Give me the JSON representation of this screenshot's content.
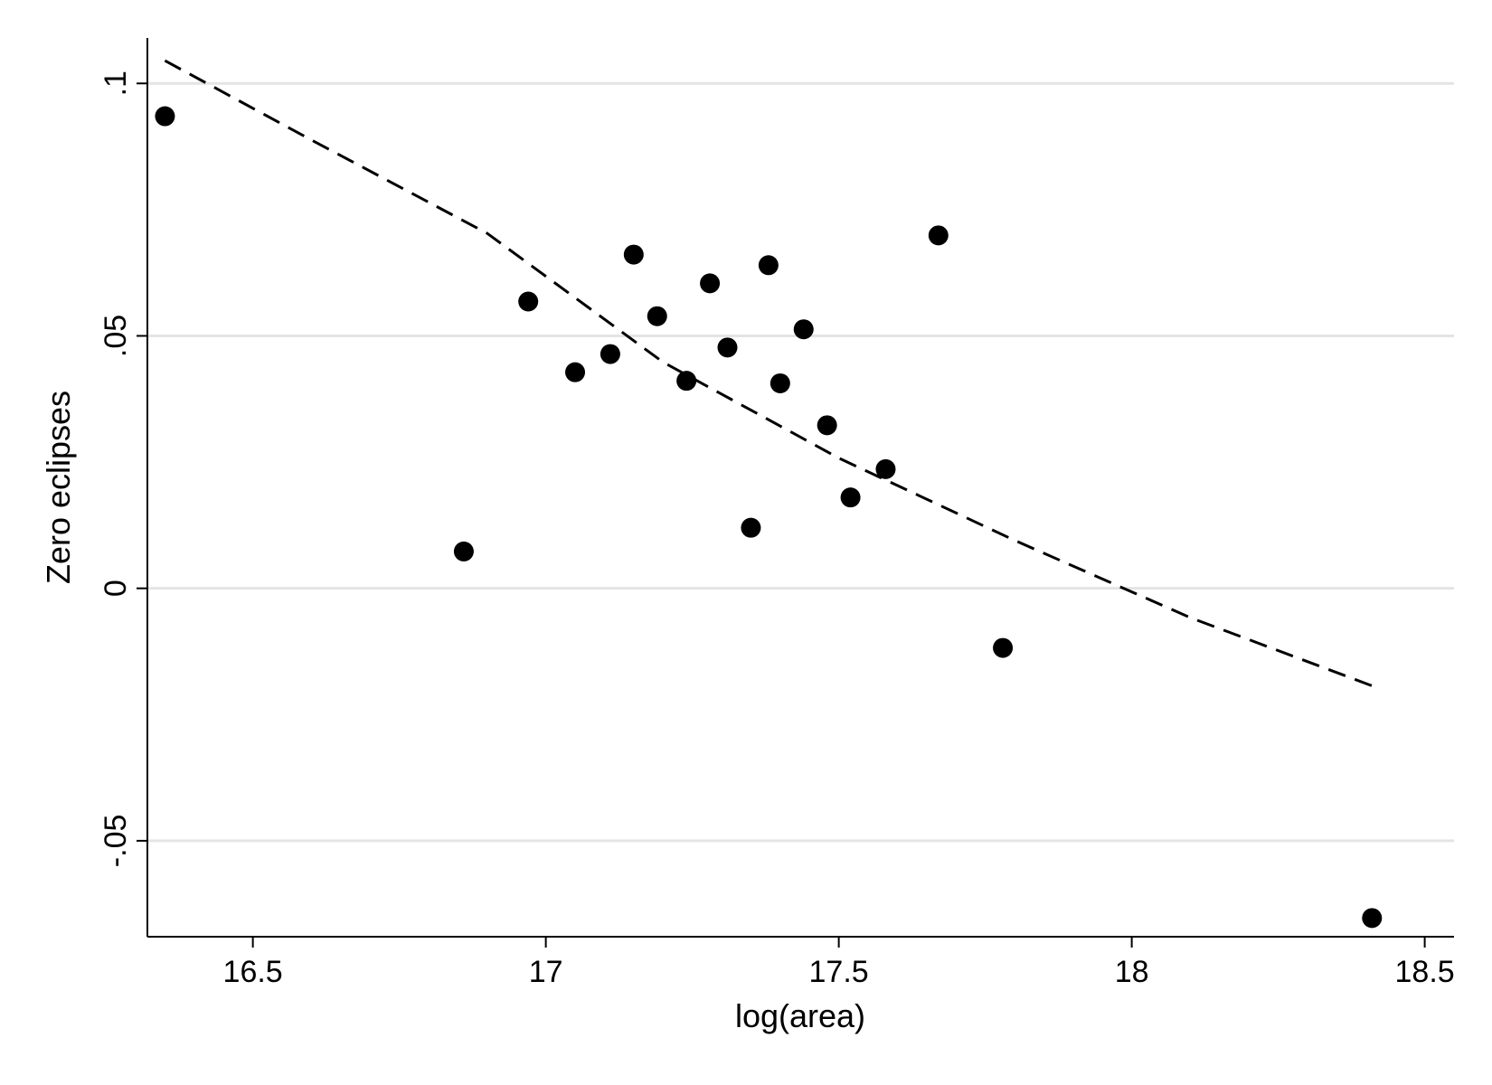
{
  "chart_data": {
    "type": "scatter",
    "title": "",
    "xlabel": "log(area)",
    "ylabel": "Zero eclipses",
    "xlim": [
      16.32,
      18.55
    ],
    "ylim": [
      -0.069,
      0.109
    ],
    "x_ticks": [
      16.5,
      17,
      17.5,
      18,
      18.5
    ],
    "x_tick_labels": [
      "16.5",
      "17",
      "17.5",
      "18",
      "18.5"
    ],
    "y_ticks": [
      -0.05,
      0,
      0.05,
      0.1
    ],
    "y_tick_labels": [
      "-.05",
      "0",
      ".05",
      ".1"
    ],
    "grid": "horizontal",
    "legend": "none",
    "colors": {
      "points": "#000000",
      "fit_line": "#000000",
      "grid": "#e4e4e4",
      "background": "#ffffff"
    },
    "series": [
      {
        "kind": "points",
        "x": [
          16.35,
          16.86,
          16.97,
          17.05,
          17.11,
          17.15,
          17.19,
          17.24,
          17.28,
          17.31,
          17.35,
          17.38,
          17.4,
          17.44,
          17.48,
          17.52,
          17.58,
          17.67,
          17.78,
          18.41
        ],
        "y": [
          0.0935,
          0.0073,
          0.0568,
          0.0428,
          0.0464,
          0.0661,
          0.0539,
          0.0411,
          0.0604,
          0.0477,
          0.012,
          0.064,
          0.0406,
          0.0513,
          0.0323,
          0.018,
          0.0236,
          0.0699,
          -0.0118,
          -0.0653
        ]
      },
      {
        "kind": "fitted-curve",
        "style": "dashed",
        "x": [
          16.35,
          16.6,
          16.9,
          17.2,
          17.5,
          17.8,
          18.1,
          18.41
        ],
        "y": [
          0.1045,
          0.0888,
          0.0703,
          0.0448,
          0.0258,
          0.0095,
          -0.0058,
          -0.0193
        ]
      }
    ]
  }
}
